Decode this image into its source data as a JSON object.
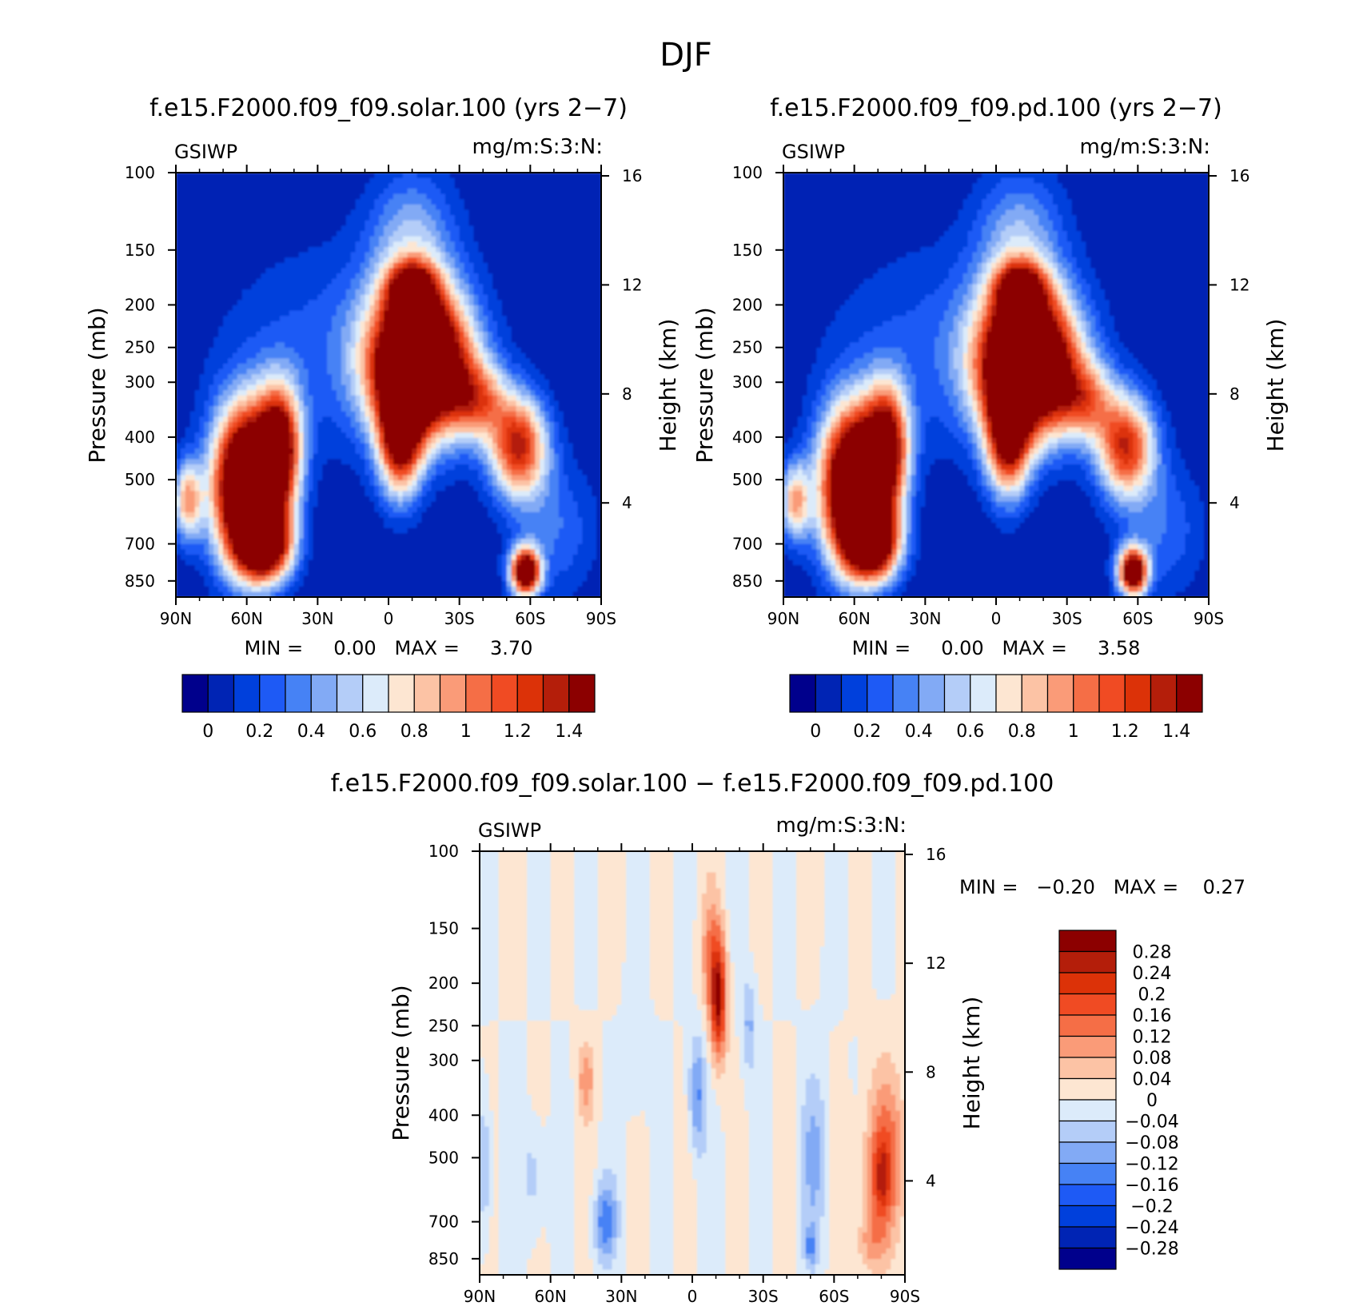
{
  "page_title": "DJF",
  "variable_label": "GSIWP",
  "units_label": "mg/m:S:3:N:",
  "palette_main": [
    "#00008c",
    "#0024b4",
    "#0040dc",
    "#1e5af5",
    "#4682f5",
    "#82aaf5",
    "#b4cdf8",
    "#dcebfa",
    "#fde6d2",
    "#fcc3a5",
    "#fa9b78",
    "#f56e46",
    "#f04b23",
    "#dc3208",
    "#b41e0a",
    "#8c0000"
  ],
  "palette_diff": [
    "#00008c",
    "#0024b4",
    "#0040dc",
    "#1e5af5",
    "#4682f5",
    "#82aaf5",
    "#b4cdf8",
    "#dcebfa",
    "#fde6d2",
    "#fcc3a5",
    "#fa9b78",
    "#f56e46",
    "#f04b23",
    "#dc3208",
    "#b41e0a",
    "#8c0000"
  ],
  "chart_data": [
    {
      "type": "heatmap",
      "title": "f.e15.F2000.f09_f09.solar.100 (yrs 2−7)",
      "left_label": "GSIWP",
      "right_label": "mg/m:S:3:N:",
      "ylabel": "Pressure (mb)",
      "y2label": "Height (km)",
      "xticks": [
        "90N",
        "60N",
        "30N",
        "0",
        "30S",
        "60S",
        "90S"
      ],
      "x_range": [
        90,
        -90
      ],
      "yticks": [
        "100",
        "150",
        "200",
        "250",
        "300",
        "400",
        "500",
        "700",
        "850"
      ],
      "y_range_mb": [
        100,
        925
      ],
      "y2ticks": [
        "16",
        "12",
        "8",
        "4"
      ],
      "stats": "MIN =     0.00   MAX =     3.70",
      "min": 0.0,
      "max": 3.7,
      "colorbar_labels": [
        "0",
        "0.2",
        "0.4",
        "0.6",
        "0.8",
        "1",
        "1.2",
        "1.4"
      ],
      "levels": [
        0,
        0.1,
        0.2,
        0.3,
        0.4,
        0.5,
        0.6,
        0.7,
        0.8,
        0.9,
        1.0,
        1.1,
        1.2,
        1.3,
        1.4
      ],
      "scale": 1.0
    },
    {
      "type": "heatmap",
      "title": "f.e15.F2000.f09_f09.pd.100 (yrs 2−7)",
      "left_label": "GSIWP",
      "right_label": "mg/m:S:3:N:",
      "ylabel": "Pressure (mb)",
      "y2label": "Height (km)",
      "xticks": [
        "90N",
        "60N",
        "30N",
        "0",
        "30S",
        "60S",
        "90S"
      ],
      "x_range": [
        90,
        -90
      ],
      "yticks": [
        "100",
        "150",
        "200",
        "250",
        "300",
        "400",
        "500",
        "700",
        "850"
      ],
      "y_range_mb": [
        100,
        925
      ],
      "y2ticks": [
        "16",
        "12",
        "8",
        "4"
      ],
      "stats": "MIN =     0.00   MAX =     3.58",
      "min": 0.0,
      "max": 3.58,
      "colorbar_labels": [
        "0",
        "0.2",
        "0.4",
        "0.6",
        "0.8",
        "1",
        "1.2",
        "1.4"
      ],
      "levels": [
        0,
        0.1,
        0.2,
        0.3,
        0.4,
        0.5,
        0.6,
        0.7,
        0.8,
        0.9,
        1.0,
        1.1,
        1.2,
        1.3,
        1.4
      ],
      "scale": 0.97
    },
    {
      "type": "heatmap",
      "title": "f.e15.F2000.f09_f09.solar.100 − f.e15.F2000.f09_f09.pd.100",
      "left_label": "GSIWP",
      "right_label": "mg/m:S:3:N:",
      "ylabel": "Pressure (mb)",
      "y2label": "Height (km)",
      "xticks": [
        "90N",
        "60N",
        "30N",
        "0",
        "30S",
        "60S",
        "90S"
      ],
      "x_range": [
        90,
        -90
      ],
      "yticks": [
        "100",
        "150",
        "200",
        "250",
        "300",
        "400",
        "500",
        "700",
        "850"
      ],
      "y_range_mb": [
        100,
        925
      ],
      "y2ticks": [
        "16",
        "12",
        "8",
        "4"
      ],
      "stats": "MIN =   −0.20   MAX =    0.27",
      "min": -0.2,
      "max": 0.27,
      "colorbar_labels": [
        "0.28",
        "0.24",
        "0.2",
        "0.16",
        "0.12",
        "0.08",
        "0.04",
        "0",
        "−0.04",
        "−0.08",
        "−0.12",
        "−0.16",
        "−0.2",
        "−0.24",
        "−0.28"
      ],
      "levels": [
        -0.28,
        -0.24,
        -0.2,
        -0.16,
        -0.12,
        -0.08,
        -0.04,
        0,
        0.04,
        0.08,
        0.12,
        0.16,
        0.2,
        0.24,
        0.28
      ]
    }
  ]
}
